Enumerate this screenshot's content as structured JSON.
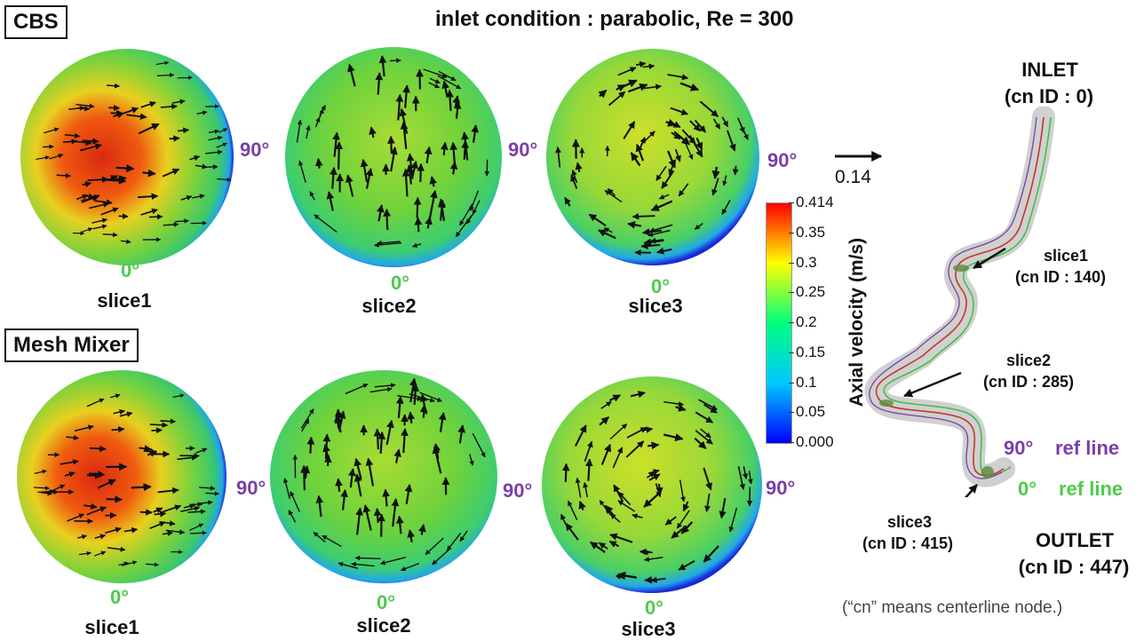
{
  "title": "inlet condition : parabolic, Re = 300",
  "rows": [
    {
      "label": "CBS"
    },
    {
      "label": "Mesh Mixer"
    }
  ],
  "slices": {
    "slice1": "slice1",
    "slice2": "slice2",
    "slice3": "slice3"
  },
  "angles": {
    "zero": "0°",
    "ninety": "90°"
  },
  "scale_arrow": {
    "value": "0.14"
  },
  "colorbar": {
    "title": "Axial velocity (m/s)",
    "ticks": [
      "0.414",
      "0.35",
      "0.3",
      "0.25",
      "0.2",
      "0.15",
      "0.1",
      "0.05",
      "0.000"
    ],
    "min": 0.0,
    "max": 0.414,
    "colors": [
      "#0000ff",
      "#00c8ff",
      "#00ff80",
      "#ffff00",
      "#ff0000"
    ]
  },
  "vessel": {
    "inlet": "INLET",
    "inlet_id": "(cn ID : 0)",
    "slice1": "slice1",
    "slice1_id": "(cn ID : 140)",
    "slice2": "slice2",
    "slice2_id": "(cn ID : 285)",
    "slice3": "slice3",
    "slice3_id": "(cn ID : 415)",
    "outlet": "OUTLET",
    "outlet_id": "(cn ID : 447)",
    "ref90": "90°",
    "ref90_label": "ref line",
    "ref0": "0°",
    "ref0_label": "ref line",
    "note": "(“cn” means centerline node.)"
  },
  "colors": {
    "ref0": "#4ccb4c",
    "ref90": "#7a3fa6"
  }
}
